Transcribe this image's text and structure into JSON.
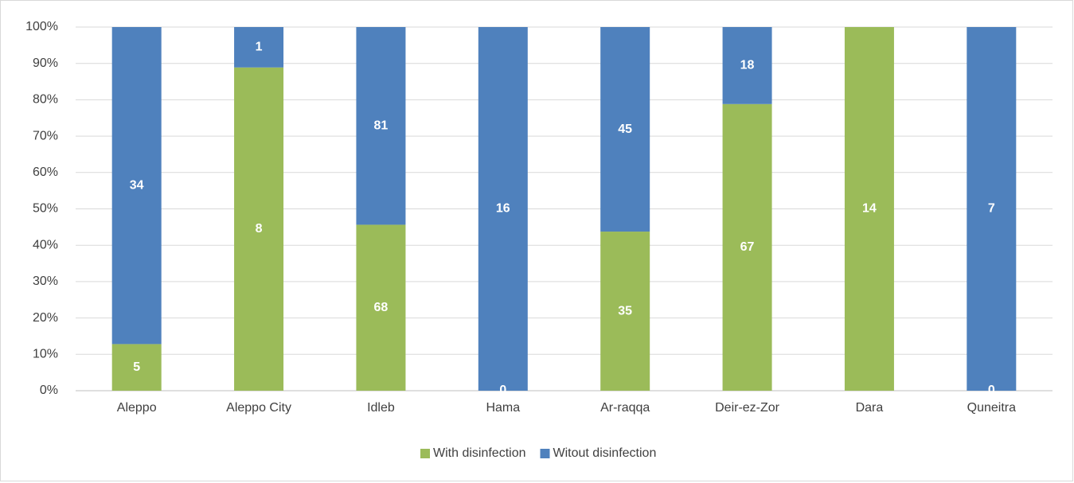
{
  "chart_data": {
    "type": "bar",
    "stacking": "percent",
    "categories": [
      "Aleppo",
      "Aleppo City",
      "Idleb",
      "Hama",
      "Ar-raqqa",
      "Deir-ez-Zor",
      "Dara",
      "Quneitra"
    ],
    "series": [
      {
        "name": "With disinfection",
        "color": "#9bbb59",
        "values": [
          5,
          8,
          68,
          0,
          35,
          67,
          14,
          0
        ]
      },
      {
        "name": "Witout disinfection",
        "color": "#4f81bd",
        "values": [
          34,
          1,
          81,
          16,
          45,
          18,
          null,
          7
        ]
      }
    ],
    "ylim": [
      0,
      100
    ],
    "yticks": [
      {
        "value": 0,
        "label": "0%"
      },
      {
        "value": 10,
        "label": "10%"
      },
      {
        "value": 20,
        "label": "20%"
      },
      {
        "value": 30,
        "label": "30%"
      },
      {
        "value": 40,
        "label": "40%"
      },
      {
        "value": 50,
        "label": "50%"
      },
      {
        "value": 60,
        "label": "60%"
      },
      {
        "value": 70,
        "label": "70%"
      },
      {
        "value": 80,
        "label": "80%"
      },
      {
        "value": 90,
        "label": "90%"
      },
      {
        "value": 100,
        "label": "100%"
      }
    ],
    "grid": true,
    "legend": "bottom"
  }
}
